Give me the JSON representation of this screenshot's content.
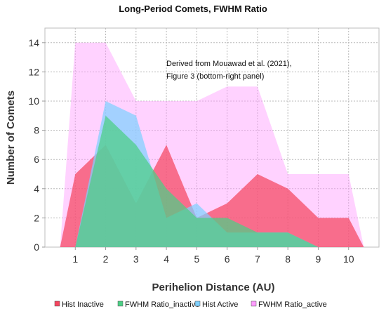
{
  "chart_data": {
    "type": "area",
    "title": "Long-Period Comets, FWHM Ratio",
    "xlabel": "Perihelion Distance (AU)",
    "ylabel": "Number of Comets",
    "xlim": [
      0,
      11
    ],
    "ylim": [
      0,
      15
    ],
    "xticks": [
      1,
      2,
      3,
      4,
      5,
      6,
      7,
      8,
      9,
      10
    ],
    "yticks": [
      0,
      2,
      4,
      6,
      8,
      10,
      12,
      14
    ],
    "grid": true,
    "annotation": [
      "Derived from Mouawad et al. (2021),",
      "Figure 3 (bottom-right panel)"
    ],
    "legend_position": "bottom",
    "series": [
      {
        "name": "FWHM Ratio_active",
        "color": "#ff9cff",
        "points": [
          [
            0.5,
            0
          ],
          [
            1,
            14
          ],
          [
            2,
            14
          ],
          [
            3,
            10
          ],
          [
            4,
            10
          ],
          [
            5,
            10
          ],
          [
            6,
            11
          ],
          [
            7,
            11
          ],
          [
            8,
            5
          ],
          [
            9,
            5
          ],
          [
            10,
            5
          ],
          [
            10.5,
            0
          ]
        ]
      },
      {
        "name": "Hist Inactive",
        "color": "#f5455f",
        "points": [
          [
            0.5,
            0
          ],
          [
            1,
            5
          ],
          [
            2,
            7
          ],
          [
            3,
            3
          ],
          [
            4,
            7
          ],
          [
            5,
            2
          ],
          [
            6,
            3
          ],
          [
            7,
            5
          ],
          [
            8,
            4
          ],
          [
            9,
            2
          ],
          [
            10,
            2
          ],
          [
            10.5,
            0
          ]
        ]
      },
      {
        "name": "Hist Active",
        "color": "#7fd0ff",
        "points": [
          [
            1,
            0
          ],
          [
            2,
            10
          ],
          [
            3,
            9
          ],
          [
            4,
            2
          ],
          [
            5,
            3
          ],
          [
            6,
            1
          ],
          [
            7,
            1
          ],
          [
            8,
            1
          ],
          [
            9,
            0
          ]
        ]
      },
      {
        "name": "FWHM Ratio_inactive",
        "color": "#4ccf85",
        "points": [
          [
            1,
            0
          ],
          [
            2,
            9
          ],
          [
            3,
            7
          ],
          [
            4,
            4
          ],
          [
            5,
            2
          ],
          [
            6,
            2
          ],
          [
            7,
            1
          ],
          [
            8,
            1
          ],
          [
            9,
            0
          ]
        ]
      }
    ],
    "legend_order": [
      "Hist Inactive",
      "FWHM Ratio_inactive",
      "Hist Active",
      "FWHM Ratio_active"
    ]
  }
}
